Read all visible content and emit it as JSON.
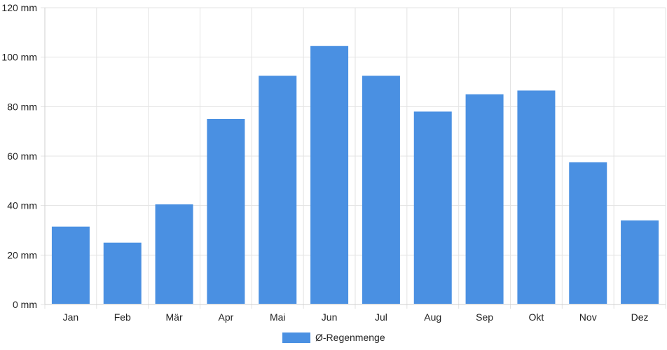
{
  "chart_data": {
    "type": "bar",
    "categories": [
      "Jan",
      "Feb",
      "Mär",
      "Apr",
      "Mai",
      "Jun",
      "Jul",
      "Aug",
      "Sep",
      "Okt",
      "Nov",
      "Dez"
    ],
    "series": [
      {
        "name": "Ø-Regenmenge",
        "values": [
          31.5,
          25,
          40.5,
          75,
          92.5,
          104.5,
          92.5,
          78,
          85,
          86.5,
          57.5,
          34
        ],
        "color": "#4a90e2"
      }
    ],
    "ylim": [
      0,
      120
    ],
    "y_ticks": [
      0,
      20,
      40,
      60,
      80,
      100,
      120
    ],
    "y_unit": "mm",
    "grid": true,
    "legend": "bottom"
  }
}
